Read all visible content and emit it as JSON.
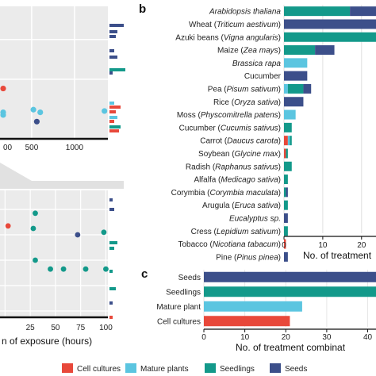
{
  "colors": {
    "Cell cultures": "#e8483a",
    "Mature plants": "#5bc5e0",
    "Seedlings": "#13998a",
    "Seeds": "#3c4f8a",
    "panel_bg": "#ebebeb",
    "grid": "#ffffff"
  },
  "legend": [
    "Cell cultures",
    "Mature plants",
    "Seedlings",
    "Seeds"
  ],
  "chart_data": [
    {
      "id": "b",
      "type": "bar",
      "stacked": true,
      "orientation": "horizontal",
      "panel_label": "b",
      "xlabel": "No. of treatment",
      "xticks": [
        0,
        10,
        20
      ],
      "xlim": [
        0,
        27
      ],
      "categories": [
        "Arabidopsis thaliana",
        "Wheat (Triticum aestivum)",
        "Azuki beans (Vigna angularis)",
        "Maize (Zea mays)",
        "Brassica rapa",
        "Cucumber",
        "Pea (Pisum sativum)",
        "Rice (Oryza sativa)",
        "Moss (Physcomitrella patens)",
        "Cucumber (Cucumis sativus)",
        "Carrot (Daucus carota)",
        "Soybean (Glycine max)",
        "Radish (Raphanus sativus)",
        "Alfalfa (Medicago sativa)",
        "Corymbia (Corymbia maculata)",
        "Arugula (Eruca sativa)",
        "Eucalyptus sp.",
        "Cress (Lepidium sativum)",
        "Tobacco (Nicotiana tabacum)",
        "Pine (Pinus pinea)"
      ],
      "label_parts": [
        [
          [
            "Arabidopsis thaliana",
            true
          ]
        ],
        [
          [
            "Wheat (",
            false
          ],
          [
            "Triticum aestivum",
            true
          ],
          [
            ")",
            false
          ]
        ],
        [
          [
            "Azuki beans (",
            false
          ],
          [
            "Vigna angularis",
            true
          ],
          [
            ")",
            false
          ]
        ],
        [
          [
            "Maize (",
            false
          ],
          [
            "Zea mays",
            true
          ],
          [
            ")",
            false
          ]
        ],
        [
          [
            "Brassica rapa",
            true
          ]
        ],
        [
          [
            "Cucumber",
            false
          ]
        ],
        [
          [
            "Pea (",
            false
          ],
          [
            "Pisum sativum",
            true
          ],
          [
            ")",
            false
          ]
        ],
        [
          [
            "Rice (",
            false
          ],
          [
            "Oryza sativa",
            true
          ],
          [
            ")",
            false
          ]
        ],
        [
          [
            "Moss (",
            false
          ],
          [
            "Physcomitrella patens",
            true
          ],
          [
            ")",
            false
          ]
        ],
        [
          [
            "Cucumber (",
            false
          ],
          [
            "Cucumis sativus",
            true
          ],
          [
            ")",
            false
          ]
        ],
        [
          [
            "Carrot (",
            false
          ],
          [
            "Daucus carota",
            true
          ],
          [
            ")",
            false
          ]
        ],
        [
          [
            "Soybean (",
            false
          ],
          [
            "Glycine max",
            true
          ],
          [
            ")",
            false
          ]
        ],
        [
          [
            "Radish (",
            false
          ],
          [
            "Raphanus sativus",
            true
          ],
          [
            ")",
            false
          ]
        ],
        [
          [
            "Alfalfa (",
            false
          ],
          [
            "Medicago sativa",
            true
          ],
          [
            ")",
            false
          ]
        ],
        [
          [
            "Corymbia (",
            false
          ],
          [
            "Corymbia maculata",
            true
          ],
          [
            ")",
            false
          ]
        ],
        [
          [
            "Arugula (",
            false
          ],
          [
            "Eruca sativa",
            true
          ],
          [
            ")",
            false
          ]
        ],
        [
          [
            "Eucalyptus sp.",
            true
          ]
        ],
        [
          [
            "Cress (",
            false
          ],
          [
            "Lepidium sativum",
            true
          ],
          [
            ")",
            false
          ]
        ],
        [
          [
            "Tobacco (",
            false
          ],
          [
            "Nicotiana tabacum",
            true
          ],
          [
            ")",
            false
          ]
        ],
        [
          [
            "Pine (",
            false
          ],
          [
            "Pinus pinea",
            true
          ],
          [
            ")",
            false
          ]
        ]
      ],
      "series": [
        {
          "name": "Cell cultures",
          "values": [
            0,
            0,
            0,
            0,
            0,
            0,
            0,
            0,
            0,
            0,
            1,
            0.5,
            0,
            0,
            0,
            0,
            0,
            0,
            0.5,
            0
          ]
        },
        {
          "name": "Mature plants",
          "values": [
            0,
            0,
            0,
            0,
            6,
            0,
            1,
            0,
            3,
            0,
            0.5,
            0,
            0,
            0,
            0,
            0,
            0,
            0,
            0,
            0
          ]
        },
        {
          "name": "Seedlings",
          "values": [
            17,
            0,
            25,
            8,
            0,
            0,
            4,
            0,
            0,
            2,
            0.5,
            0.5,
            2,
            1,
            0.5,
            1,
            0,
            1,
            0,
            0
          ]
        },
        {
          "name": "Seeds",
          "values": [
            10,
            31,
            0,
            5,
            0,
            6,
            2,
            5,
            0,
            0,
            0,
            0,
            0,
            0,
            0.5,
            0,
            1,
            0,
            0,
            1
          ]
        }
      ]
    },
    {
      "id": "c",
      "type": "bar",
      "orientation": "horizontal",
      "panel_label": "c",
      "xlabel": "No. of treatment combinat",
      "xticks": [
        0,
        10,
        20,
        30,
        40
      ],
      "xlim": [
        0,
        43
      ],
      "categories": [
        "Seeds",
        "Seedlings",
        "Mature plant",
        "Cell cultures"
      ],
      "series_colors": [
        "Seeds",
        "Seedlings",
        "Mature plants",
        "Cell cultures"
      ],
      "values": [
        45,
        45,
        24,
        21
      ]
    },
    {
      "id": "a-top",
      "type": "scatter",
      "xticks": [
        500,
        1000
      ],
      "xtick_labels_visible": [
        "00",
        "500",
        "1000"
      ],
      "points": [
        {
          "x": 10,
          "y": 0.62,
          "group": "Cell cultures"
        },
        {
          "x": 90,
          "y": 0.8,
          "group": "Mature plants"
        },
        {
          "x": 20,
          "y": 0.82,
          "group": "Mature plants"
        },
        {
          "x": 560,
          "y": 0.87,
          "group": "Seeds"
        },
        {
          "x": 600,
          "y": 0.8,
          "group": "Mature plants"
        },
        {
          "x": 520,
          "y": 0.78,
          "group": "Mature plants"
        },
        {
          "x": 1350,
          "y": 0.79,
          "group": "Mature plants"
        }
      ]
    },
    {
      "id": "a-bottom",
      "type": "scatter",
      "xlabel": "n of exposure (hours)",
      "xticks": [
        25,
        50,
        75,
        100
      ],
      "points": [
        {
          "x": 30,
          "y": 0.55,
          "group": "Seedlings"
        },
        {
          "x": 45,
          "y": 0.62,
          "group": "Seedlings"
        },
        {
          "x": 58,
          "y": 0.62,
          "group": "Seedlings"
        },
        {
          "x": 80,
          "y": 0.62,
          "group": "Seedlings"
        },
        {
          "x": 100,
          "y": 0.62,
          "group": "Seedlings"
        },
        {
          "x": 72,
          "y": 0.35,
          "group": "Seeds"
        },
        {
          "x": 98,
          "y": 0.33,
          "group": "Seedlings"
        },
        {
          "x": 28,
          "y": 0.3,
          "group": "Seedlings"
        },
        {
          "x": 30,
          "y": 0.18,
          "group": "Seedlings"
        },
        {
          "x": 3,
          "y": 0.28,
          "group": "Cell cultures"
        }
      ]
    }
  ]
}
